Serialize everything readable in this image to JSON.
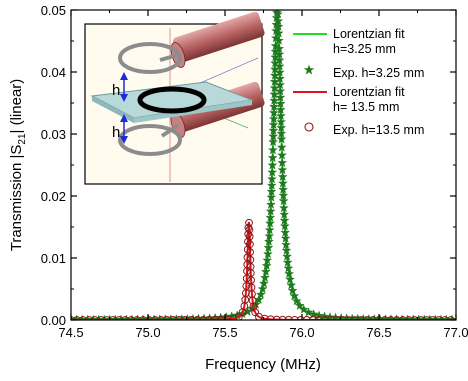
{
  "chart_data": {
    "type": "line",
    "xlabel": "Frequency (MHz)",
    "ylabel": "Transmission |S21| (linear)",
    "ylabel_main": "Transmission |S",
    "ylabel_sub": "21",
    "ylabel_tail": "| (linear)",
    "xlim": [
      74.5,
      77.0
    ],
    "ylim": [
      0.0,
      0.05
    ],
    "xticks": [
      74.5,
      75.0,
      75.5,
      76.0,
      76.5,
      77.0
    ],
    "xtick_labels": [
      "74.5",
      "75.0",
      "75.5",
      "76.0",
      "76.5",
      "77.0"
    ],
    "yticks": [
      0.0,
      0.01,
      0.02,
      0.03,
      0.04,
      0.05
    ],
    "ytick_labels": [
      "0.00",
      "0.01",
      "0.02",
      "0.03",
      "0.04",
      "0.05"
    ],
    "grid": false,
    "legend_position": "top-right",
    "series": [
      {
        "name": "Lorentzian fit h=3.25 mm",
        "kind": "line",
        "color": "#22dd22",
        "f0": 75.84,
        "peak": 0.0499,
        "hwhm": 0.032
      },
      {
        "name": "Exp. h=3.25 mm",
        "kind": "star-markers",
        "color": "#1f7a1f",
        "f0": 75.84,
        "peak": 0.0499,
        "hwhm": 0.032
      },
      {
        "name": "Lorentzian fit h= 13.5 mm",
        "kind": "line",
        "color": "#e0141e",
        "f0": 75.655,
        "peak": 0.0158,
        "hwhm": 0.012
      },
      {
        "name": "Exp. h=13.5 mm",
        "kind": "circle-markers",
        "color": "#8b1a1a",
        "f0": 75.655,
        "peak": 0.0158,
        "hwhm": 0.012
      }
    ],
    "legend": {
      "entries": [
        {
          "line1": "Lorentzian fit",
          "line2": "h=3.25 mm",
          "marker": "line",
          "color": "#22dd22"
        },
        {
          "line1": "Exp. h=3.25 mm",
          "line2": "",
          "marker": "star",
          "color": "#1f7a1f"
        },
        {
          "line1": "Lorentzian fit",
          "line2": "h= 13.5 mm",
          "marker": "line",
          "color": "#e0141e"
        },
        {
          "line1": "Exp. h=13.5 mm",
          "line2": "",
          "marker": "circle",
          "color": "#8b1a1a"
        }
      ]
    },
    "inset": {
      "labels": [
        "h",
        "h"
      ]
    }
  }
}
